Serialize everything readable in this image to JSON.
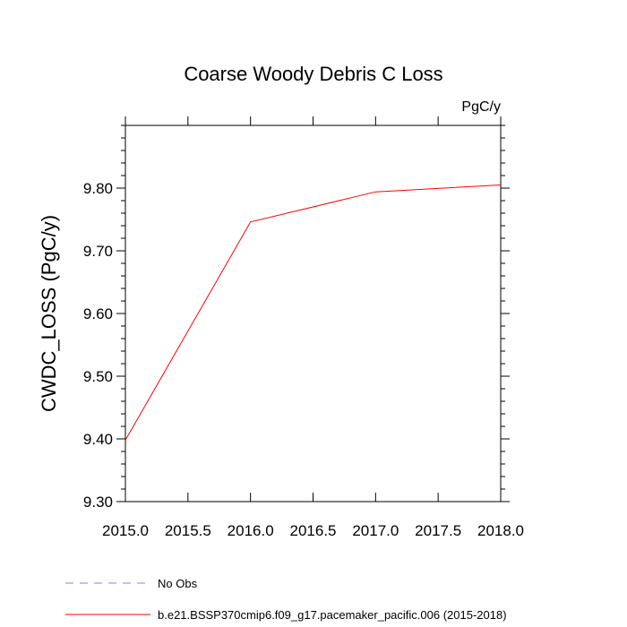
{
  "chart_data": {
    "type": "line",
    "title": "Coarse Woody Debris C Loss",
    "units_label": "PgC/y",
    "ylabel": "CWDC_LOSS  (PgC/y)",
    "xlabel": "",
    "xlim": [
      2015.0,
      2018.0
    ],
    "ylim": [
      9.3,
      9.9
    ],
    "x_ticks": [
      "2015.0",
      "2015.5",
      "2016.0",
      "2016.5",
      "2017.0",
      "2017.5",
      "2018.0"
    ],
    "y_ticks": [
      "9.30",
      "9.40",
      "9.50",
      "9.60",
      "9.70",
      "9.80"
    ],
    "grid": false,
    "legend_position": "bottom",
    "series": [
      {
        "name": "No Obs",
        "color": "#8080ff",
        "dash": "dashed",
        "x": [],
        "y": []
      },
      {
        "name": "b.e21.BSSP370cmip6.f09_g17.pacemaker_pacific.006 (2015-2018)",
        "color": "#ff0000",
        "dash": "solid",
        "x": [
          2015.0,
          2016.0,
          2017.0,
          2018.0
        ],
        "y": [
          9.398,
          9.746,
          9.794,
          9.805
        ]
      }
    ]
  }
}
